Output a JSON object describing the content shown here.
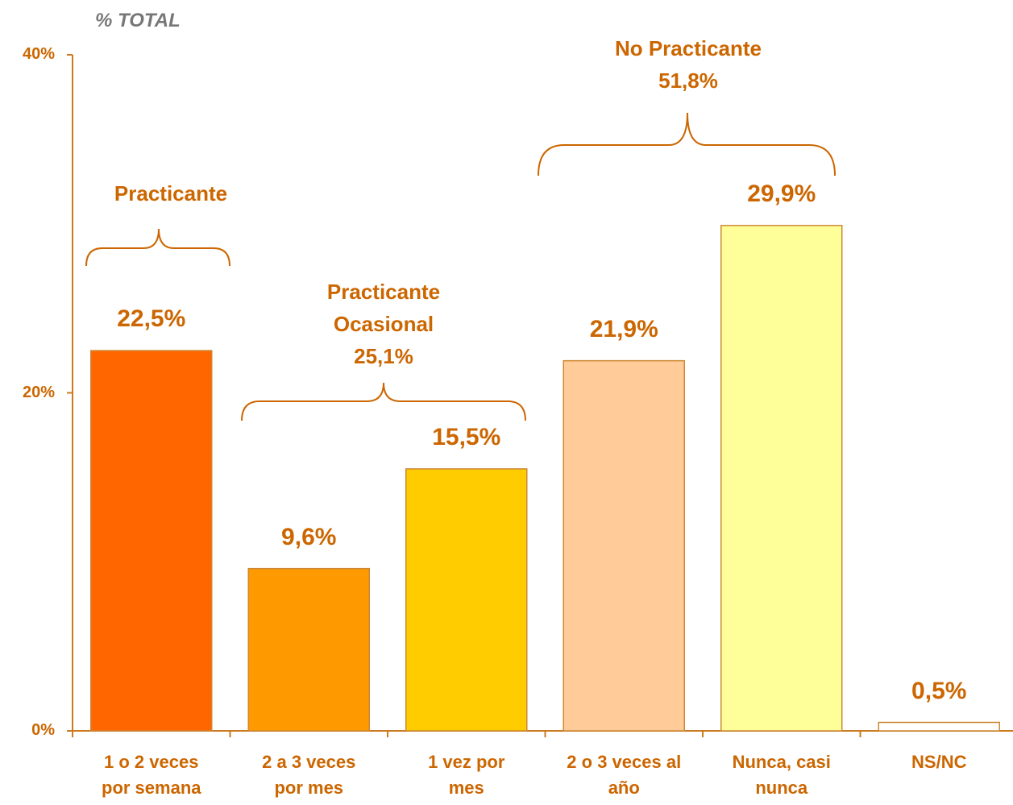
{
  "chart_data": {
    "type": "bar",
    "y_axis_title": "% TOTAL",
    "categories": [
      "1 o 2 veces\npor semana",
      "2 a 3 veces\npor mes",
      "1 vez por\nmes",
      "2 o 3 veces al\naño",
      "Nunca, casi\nnunca",
      "NS/NC"
    ],
    "values": [
      22.5,
      9.6,
      15.5,
      21.9,
      29.9,
      0.5
    ],
    "value_labels": [
      "22,5%",
      "9,6%",
      "15,5%",
      "21,9%",
      "29,9%",
      "0,5%"
    ],
    "colors": [
      "#FF6600",
      "#FF9900",
      "#FFCC00",
      "#FFCC99",
      "#FFFF99",
      "#FFFFFF"
    ],
    "ylim": [
      0,
      40
    ],
    "yticks": [
      {
        "value": 0,
        "label": "0%"
      },
      {
        "value": 20,
        "label": "20%"
      },
      {
        "value": 40,
        "label": "40%"
      }
    ],
    "annotations": [
      "Practicante",
      "Practicante\nOcasional\n25,1%",
      "No Practicante\n51,8%"
    ]
  }
}
